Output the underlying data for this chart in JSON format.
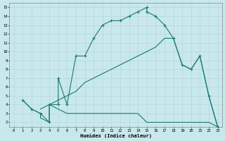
{
  "xlabel": "Humidex (Indice chaleur)",
  "line_color": "#1a7a6e",
  "bg_color": "#c8e8ec",
  "grid_color": "#b0d4d8",
  "xlim": [
    -0.5,
    23.5
  ],
  "ylim": [
    1.5,
    15.5
  ],
  "xticks": [
    0,
    1,
    2,
    3,
    4,
    5,
    6,
    7,
    8,
    9,
    10,
    11,
    12,
    13,
    14,
    15,
    16,
    17,
    18,
    19,
    20,
    21,
    22,
    23
  ],
  "yticks": [
    2,
    3,
    4,
    5,
    6,
    7,
    8,
    9,
    10,
    11,
    12,
    13,
    14,
    15
  ],
  "line1_solid": [
    [
      1,
      4.5
    ],
    [
      2,
      3.5
    ],
    [
      3,
      3
    ],
    [
      4,
      2
    ],
    [
      4,
      4
    ],
    [
      5,
      4
    ],
    [
      5,
      7
    ],
    [
      6,
      4
    ],
    [
      7,
      9.5
    ],
    [
      8,
      9.5
    ],
    [
      9,
      11.5
    ],
    [
      10,
      13
    ],
    [
      11,
      13.5
    ],
    [
      12,
      13.5
    ],
    [
      13,
      14
    ],
    [
      14,
      14.5
    ],
    [
      15,
      15
    ],
    [
      15,
      14.5
    ],
    [
      16,
      14
    ],
    [
      17,
      13
    ],
    [
      18,
      11.5
    ]
  ],
  "line1_markers": [
    [
      1,
      4.5
    ],
    [
      2,
      3.5
    ],
    [
      3,
      3
    ],
    [
      4,
      2
    ],
    [
      4,
      4
    ],
    [
      5,
      4
    ],
    [
      5,
      7
    ],
    [
      6,
      4
    ],
    [
      7,
      9.5
    ],
    [
      8,
      9.5
    ],
    [
      9,
      11.5
    ],
    [
      10,
      13
    ],
    [
      11,
      13.5
    ],
    [
      12,
      13.5
    ],
    [
      13,
      14
    ],
    [
      14,
      14.5
    ],
    [
      15,
      15
    ],
    [
      15,
      14.5
    ],
    [
      16,
      14
    ],
    [
      17,
      13
    ],
    [
      18,
      11.5
    ],
    [
      19,
      8.5
    ],
    [
      20,
      8
    ],
    [
      21,
      9.5
    ],
    [
      22,
      5
    ],
    [
      23,
      1.5
    ]
  ],
  "line_low": [
    [
      1,
      4.5
    ],
    [
      2,
      3.5
    ],
    [
      3,
      3
    ],
    [
      3,
      2.5
    ],
    [
      4,
      2
    ],
    [
      4,
      4
    ],
    [
      5,
      3.5
    ],
    [
      6,
      3
    ],
    [
      7,
      3
    ],
    [
      8,
      3
    ],
    [
      9,
      3
    ],
    [
      10,
      3
    ],
    [
      11,
      3
    ],
    [
      12,
      3
    ],
    [
      13,
      3
    ],
    [
      14,
      3
    ],
    [
      15,
      2
    ],
    [
      16,
      2
    ],
    [
      17,
      2
    ],
    [
      18,
      2
    ],
    [
      19,
      2
    ],
    [
      20,
      2
    ],
    [
      21,
      2
    ],
    [
      22,
      2
    ],
    [
      23,
      1.5
    ]
  ],
  "line_diag1": [
    [
      3,
      3.5
    ],
    [
      4,
      4
    ],
    [
      5,
      4.5
    ],
    [
      6,
      5
    ],
    [
      7,
      5.5
    ],
    [
      8,
      6.5
    ],
    [
      9,
      7
    ],
    [
      10,
      7.5
    ],
    [
      11,
      8
    ],
    [
      12,
      8.5
    ],
    [
      13,
      9
    ],
    [
      14,
      9.5
    ],
    [
      15,
      10
    ],
    [
      16,
      10.5
    ],
    [
      17,
      11.5
    ],
    [
      18,
      11.5
    ],
    [
      19,
      8.5
    ],
    [
      20,
      8
    ],
    [
      21,
      9.5
    ],
    [
      22,
      5
    ],
    [
      23,
      1.5
    ]
  ],
  "line_diag2": [
    [
      3,
      3.5
    ],
    [
      4,
      4
    ],
    [
      5,
      4.5
    ],
    [
      6,
      5.5
    ],
    [
      7,
      6
    ],
    [
      8,
      6.5
    ],
    [
      9,
      7
    ],
    [
      10,
      7.5
    ],
    [
      11,
      8
    ],
    [
      12,
      8.5
    ],
    [
      13,
      9
    ],
    [
      14,
      9.5
    ],
    [
      15,
      10
    ],
    [
      16,
      11.5
    ],
    [
      17,
      11.5
    ],
    [
      18,
      11.5
    ],
    [
      19,
      8.5
    ],
    [
      20,
      8
    ],
    [
      21,
      9.5
    ],
    [
      22,
      5
    ],
    [
      23,
      1.5
    ]
  ]
}
